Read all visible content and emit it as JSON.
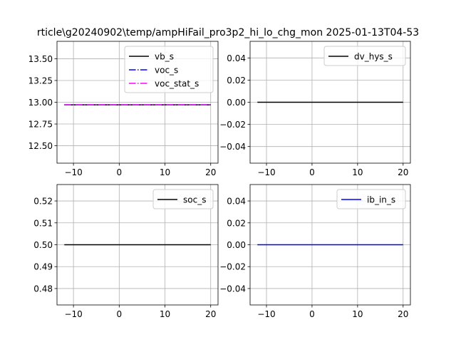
{
  "figure": {
    "title": "rticle\\g20240902\\temp/ampHiFail_pro3p2_hi_lo_chg_mon   2025-01-13T04-53"
  },
  "chart_data": [
    {
      "type": "line",
      "xlim": [
        -13.6,
        21.6
      ],
      "ylim": [
        12.3,
        13.7
      ],
      "xticks": [
        -10,
        0,
        10,
        20
      ],
      "xtick_labels": [
        "−10",
        "0",
        "10",
        "20"
      ],
      "yticks": [
        12.5,
        12.75,
        13.0,
        13.25,
        13.5
      ],
      "ytick_labels": [
        "12.50",
        "12.75",
        "13.00",
        "13.25",
        "13.50"
      ],
      "grid": true,
      "legend_position": "top-right",
      "series": [
        {
          "name": "vb_s",
          "color": "#000000",
          "style": "solid",
          "x": [
            -12,
            20
          ],
          "y": [
            12.97,
            12.97
          ]
        },
        {
          "name": "voc_s",
          "color": "#0000ff",
          "style": "dashdot",
          "x": [
            -12,
            20
          ],
          "y": [
            12.97,
            12.97
          ]
        },
        {
          "name": "voc_stat_s",
          "color": "#ff00ff",
          "style": "dashdot",
          "x": [
            -12,
            20
          ],
          "y": [
            12.97,
            12.97
          ]
        }
      ]
    },
    {
      "type": "line",
      "xlim": [
        -13.6,
        21.6
      ],
      "ylim": [
        -0.055,
        0.055
      ],
      "xticks": [
        -10,
        0,
        10,
        20
      ],
      "xtick_labels": [
        "−10",
        "0",
        "10",
        "20"
      ],
      "yticks": [
        -0.04,
        -0.02,
        0.0,
        0.02,
        0.04
      ],
      "ytick_labels": [
        "−0.04",
        "−0.02",
        "0.00",
        "0.02",
        "0.04"
      ],
      "grid": true,
      "legend_position": "top-right",
      "series": [
        {
          "name": "dv_hys_s",
          "color": "#000000",
          "style": "solid",
          "x": [
            -12,
            20
          ],
          "y": [
            0,
            0
          ]
        }
      ]
    },
    {
      "type": "line",
      "xlim": [
        -13.6,
        21.6
      ],
      "ylim": [
        0.4725,
        0.5275
      ],
      "xticks": [
        -10,
        0,
        10,
        20
      ],
      "xtick_labels": [
        "−10",
        "0",
        "10",
        "20"
      ],
      "yticks": [
        0.48,
        0.49,
        0.5,
        0.51,
        0.52
      ],
      "ytick_labels": [
        "0.48",
        "0.49",
        "0.50",
        "0.51",
        "0.52"
      ],
      "grid": true,
      "legend_position": "top-right",
      "series": [
        {
          "name": "soc_s",
          "color": "#000000",
          "style": "solid",
          "x": [
            -12,
            20
          ],
          "y": [
            0.5,
            0.5
          ]
        }
      ]
    },
    {
      "type": "line",
      "xlim": [
        -13.6,
        21.6
      ],
      "ylim": [
        -0.055,
        0.055
      ],
      "xticks": [
        -10,
        0,
        10,
        20
      ],
      "xtick_labels": [
        "−10",
        "0",
        "10",
        "20"
      ],
      "yticks": [
        -0.04,
        -0.02,
        0.0,
        0.02,
        0.04
      ],
      "ytick_labels": [
        "−0.04",
        "−0.02",
        "0.00",
        "0.02",
        "0.04"
      ],
      "grid": true,
      "legend_position": "top-right",
      "series": [
        {
          "name": "ib_in_s",
          "color": "#0000ff",
          "style": "solid",
          "x": [
            -12,
            20
          ],
          "y": [
            0,
            0
          ]
        }
      ]
    }
  ]
}
